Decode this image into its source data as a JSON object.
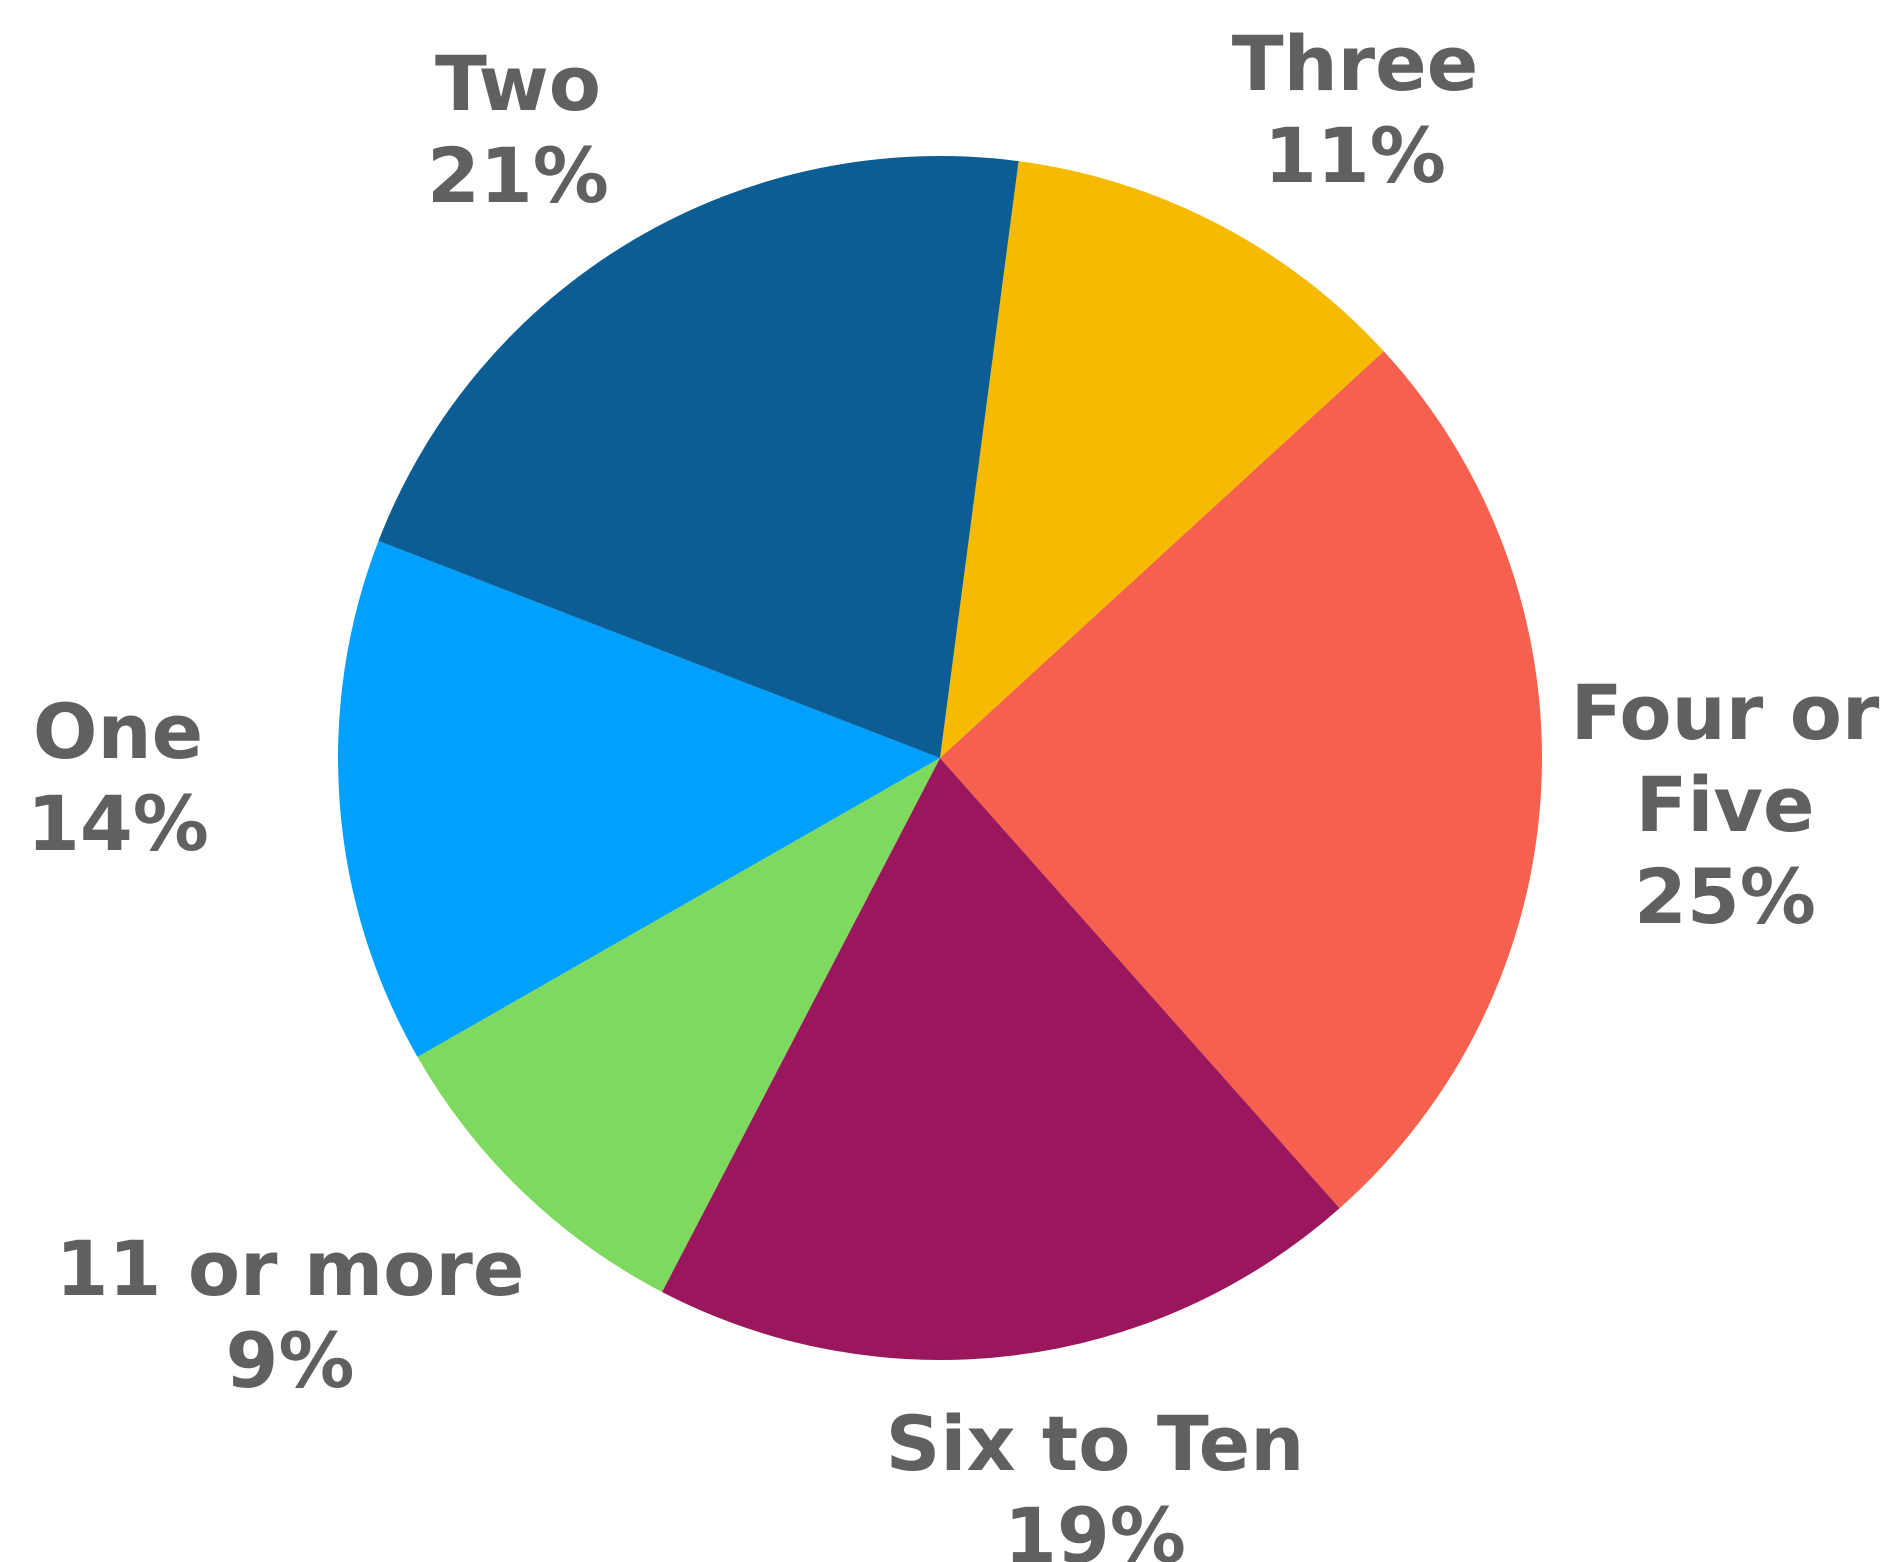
{
  "chart_data": {
    "type": "pie",
    "categories": [
      "Three",
      "Four or Five",
      "Six to Ten",
      "11 or more",
      "One",
      "Two"
    ],
    "values": [
      11,
      25,
      19,
      9,
      14,
      21
    ],
    "value_labels": [
      "11%",
      "25%",
      "19%",
      "9%",
      "14%",
      "21%"
    ],
    "label_lines": [
      [
        "Three"
      ],
      [
        "Four or",
        "Five"
      ],
      [
        "Six to Ten"
      ],
      [
        "11 or more"
      ],
      [
        "One"
      ],
      [
        "Two"
      ]
    ],
    "colors": [
      "#F6BA00",
      "#F6614F",
      "#9B175D",
      "#7ED95F",
      "#00A0FE",
      "#0D5D95"
    ],
    "start_angle_deg": 7.5,
    "direction": "clockwise",
    "label_color": "#606060",
    "title": "",
    "legend": "none"
  }
}
